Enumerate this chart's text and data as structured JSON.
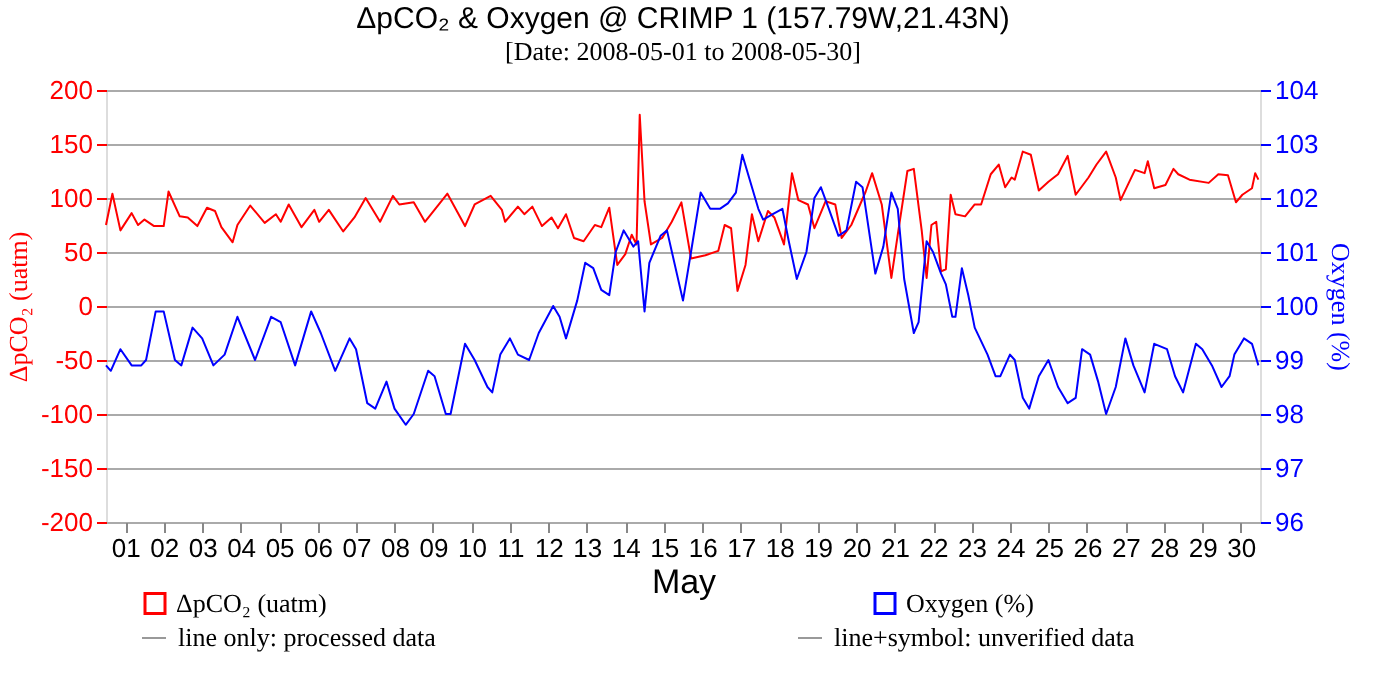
{
  "chart_data": {
    "type": "line",
    "title": "ΔpCO₂ & Oxygen  @ CRIMP 1 (157.79W,21.43N)",
    "subtitle": "[Date: 2008-05-01 to 2008-05-30]",
    "xlabel": "May",
    "ylabel": "ΔpCO₂ (uatm)",
    "y2label": "Oxygen (%)",
    "xlim": [
      "2008-05-01T00:00",
      "2008-05-31T00:00"
    ],
    "xticks": [
      {
        "value": "2008-05-01T12:00",
        "label": "01"
      },
      {
        "value": "2008-05-02T12:00",
        "label": "02"
      },
      {
        "value": "2008-05-03T12:00",
        "label": "03"
      },
      {
        "value": "2008-05-04T12:00",
        "label": "04"
      },
      {
        "value": "2008-05-05T12:00",
        "label": "05"
      },
      {
        "value": "2008-05-06T12:00",
        "label": "06"
      },
      {
        "value": "2008-05-07T12:00",
        "label": "07"
      },
      {
        "value": "2008-05-08T12:00",
        "label": "08"
      },
      {
        "value": "2008-05-09T12:00",
        "label": "09"
      },
      {
        "value": "2008-05-10T12:00",
        "label": "10"
      },
      {
        "value": "2008-05-11T12:00",
        "label": "11"
      },
      {
        "value": "2008-05-12T12:00",
        "label": "12"
      },
      {
        "value": "2008-05-13T12:00",
        "label": "13"
      },
      {
        "value": "2008-05-14T12:00",
        "label": "14"
      },
      {
        "value": "2008-05-15T12:00",
        "label": "15"
      },
      {
        "value": "2008-05-16T12:00",
        "label": "16"
      },
      {
        "value": "2008-05-17T12:00",
        "label": "17"
      },
      {
        "value": "2008-05-18T12:00",
        "label": "18"
      },
      {
        "value": "2008-05-19T12:00",
        "label": "19"
      },
      {
        "value": "2008-05-20T12:00",
        "label": "20"
      },
      {
        "value": "2008-05-21T12:00",
        "label": "21"
      },
      {
        "value": "2008-05-22T12:00",
        "label": "22"
      },
      {
        "value": "2008-05-23T12:00",
        "label": "23"
      },
      {
        "value": "2008-05-24T12:00",
        "label": "24"
      },
      {
        "value": "2008-05-25T12:00",
        "label": "25"
      },
      {
        "value": "2008-05-26T12:00",
        "label": "26"
      },
      {
        "value": "2008-05-27T12:00",
        "label": "27"
      },
      {
        "value": "2008-05-28T12:00",
        "label": "28"
      },
      {
        "value": "2008-05-29T12:00",
        "label": "29"
      },
      {
        "value": "2008-05-30T12:00",
        "label": "30"
      }
    ],
    "ylim": [
      -200,
      200
    ],
    "yticks": [
      -200,
      -150,
      -100,
      -50,
      0,
      50,
      100,
      150,
      200
    ],
    "y2lim": [
      96,
      104
    ],
    "y2ticks": [
      96,
      97,
      98,
      99,
      100,
      101,
      102,
      103,
      104
    ],
    "grid": "y",
    "legend": "bottom",
    "marker": "none",
    "annotations": [
      "line only: processed data",
      "line+symbol: unverified data"
    ],
    "series": [
      {
        "name": "ΔpCO₂ (uatm)",
        "color": "#ff0000",
        "x": [
          "2008-05-01T00:00",
          "2008-05-01T04:00",
          "2008-05-01T09:00",
          "2008-05-01T16:00",
          "2008-05-01T20:00",
          "2008-05-02T00:00",
          "2008-05-02T06:00",
          "2008-05-02T12:00",
          "2008-05-02T15:00",
          "2008-05-02T22:00",
          "2008-05-03T03:00",
          "2008-05-03T09:00",
          "2008-05-03T15:00",
          "2008-05-03T20:00",
          "2008-05-04T00:00",
          "2008-05-04T07:00",
          "2008-05-04T10:00",
          "2008-05-04T18:00",
          "2008-05-05T03:00",
          "2008-05-05T10:00",
          "2008-05-05T13:00",
          "2008-05-05T18:00",
          "2008-05-06T02:00",
          "2008-05-06T10:00",
          "2008-05-06T13:00",
          "2008-05-06T19:00",
          "2008-05-07T04:00",
          "2008-05-07T11:00",
          "2008-05-07T18:00",
          "2008-05-08T03:00",
          "2008-05-08T11:00",
          "2008-05-08T15:00",
          "2008-05-09T00:00",
          "2008-05-09T07:00",
          "2008-05-09T21:00",
          "2008-05-10T08:00",
          "2008-05-10T14:00",
          "2008-05-11T00:00",
          "2008-05-11T07:00",
          "2008-05-11T09:00",
          "2008-05-11T17:00",
          "2008-05-11T21:00",
          "2008-05-12T02:00",
          "2008-05-12T08:00",
          "2008-05-12T14:00",
          "2008-05-12T18:00",
          "2008-05-12T23:00",
          "2008-05-13T04:00",
          "2008-05-13T10:00",
          "2008-05-13T17:00",
          "2008-05-13T21:00",
          "2008-05-14T02:00",
          "2008-05-14T07:00",
          "2008-05-14T12:00",
          "2008-05-14T16:00",
          "2008-05-14T19:00",
          "2008-05-14T21:00",
          "2008-05-15T00:00",
          "2008-05-15T04:00",
          "2008-05-15T11:00",
          "2008-05-15T17:00",
          "2008-05-15T23:00",
          "2008-05-16T05:00",
          "2008-05-16T14:00",
          "2008-05-16T22:00",
          "2008-05-17T02:00",
          "2008-05-17T06:00",
          "2008-05-17T10:00",
          "2008-05-17T15:00",
          "2008-05-17T19:00",
          "2008-05-17T23:00",
          "2008-05-18T05:00",
          "2008-05-18T09:00",
          "2008-05-18T15:00",
          "2008-05-18T20:00",
          "2008-05-19T00:00",
          "2008-05-19T06:00",
          "2008-05-19T10:00",
          "2008-05-19T17:00",
          "2008-05-19T23:00",
          "2008-05-20T03:00",
          "2008-05-20T09:00",
          "2008-05-20T18:00",
          "2008-05-20T22:00",
          "2008-05-21T04:00",
          "2008-05-21T10:00",
          "2008-05-21T14:00",
          "2008-05-21T20:00",
          "2008-05-22T00:00",
          "2008-05-22T05:00",
          "2008-05-22T08:00",
          "2008-05-22T11:00",
          "2008-05-22T14:00",
          "2008-05-22T17:00",
          "2008-05-22T20:00",
          "2008-05-22T23:00",
          "2008-05-23T02:00",
          "2008-05-23T08:00",
          "2008-05-23T14:00",
          "2008-05-23T18:00",
          "2008-05-24T00:00",
          "2008-05-24T05:00",
          "2008-05-24T09:00",
          "2008-05-24T13:00",
          "2008-05-24T15:00",
          "2008-05-24T20:00",
          "2008-05-25T01:00",
          "2008-05-25T06:00",
          "2008-05-25T12:00",
          "2008-05-25T18:00",
          "2008-05-26T00:00",
          "2008-05-26T05:00",
          "2008-05-26T13:00",
          "2008-05-26T18:00",
          "2008-05-27T00:00",
          "2008-05-27T06:00",
          "2008-05-27T09:00",
          "2008-05-27T18:00",
          "2008-05-28T00:00",
          "2008-05-28T02:00",
          "2008-05-28T06:00",
          "2008-05-28T13:00",
          "2008-05-28T18:00",
          "2008-05-28T21:00",
          "2008-05-29T04:00",
          "2008-05-29T16:00",
          "2008-05-29T22:00",
          "2008-05-30T04:00",
          "2008-05-30T09:00",
          "2008-05-30T13:00",
          "2008-05-30T19:00",
          "2008-05-30T21:00",
          "2008-05-30T23:00"
        ],
        "values": [
          75,
          104,
          70,
          86,
          75,
          80,
          74,
          74,
          106,
          83,
          82,
          74,
          91,
          88,
          73,
          59,
          75,
          93,
          77,
          85,
          78,
          94,
          73,
          89,
          78,
          89,
          69,
          82,
          100,
          78,
          102,
          94,
          96,
          78,
          104,
          74,
          94,
          102,
          89,
          78,
          92,
          85,
          92,
          74,
          82,
          72,
          85,
          63,
          60,
          75,
          73,
          91,
          38,
          48,
          66,
          57,
          177,
          97,
          57,
          63,
          78,
          96,
          44,
          47,
          51,
          75,
          72,
          14,
          38,
          85,
          60,
          88,
          82,
          57,
          123,
          98,
          94,
          72,
          97,
          94,
          63,
          75,
          106,
          123,
          94,
          26,
          66,
          125,
          127,
          69,
          26,
          75,
          78,
          32,
          34,
          103,
          85,
          83,
          94,
          94,
          122,
          131,
          110,
          119,
          117,
          143,
          140,
          107,
          115,
          122,
          139,
          103,
          119,
          131,
          143,
          119,
          98,
          126,
          123,
          134,
          109,
          112,
          127,
          122,
          117,
          114,
          122,
          121,
          96,
          103,
          109,
          123,
          117
        ]
      },
      {
        "name": "Oxygen (%)",
        "color": "#0000ff",
        "axis": "y2",
        "x": [
          "2008-05-01T00:00",
          "2008-05-01T03:00",
          "2008-05-01T09:00",
          "2008-05-01T16:00",
          "2008-05-01T22:00",
          "2008-05-02T01:00",
          "2008-05-02T07:00",
          "2008-05-02T12:00",
          "2008-05-02T19:00",
          "2008-05-02T23:00",
          "2008-05-03T06:00",
          "2008-05-03T12:00",
          "2008-05-03T19:00",
          "2008-05-04T02:00",
          "2008-05-04T10:00",
          "2008-05-04T21:00",
          "2008-05-05T07:00",
          "2008-05-05T13:00",
          "2008-05-05T22:00",
          "2008-05-06T08:00",
          "2008-05-06T14:00",
          "2008-05-06T23:00",
          "2008-05-07T08:00",
          "2008-05-07T12:00",
          "2008-05-07T19:00",
          "2008-05-08T00:00",
          "2008-05-08T07:00",
          "2008-05-08T12:00",
          "2008-05-08T19:00",
          "2008-05-09T00:00",
          "2008-05-09T09:00",
          "2008-05-09T13:00",
          "2008-05-09T20:00",
          "2008-05-09T23:00",
          "2008-05-10T08:00",
          "2008-05-10T14:00",
          "2008-05-10T22:00",
          "2008-05-11T01:00",
          "2008-05-11T06:00",
          "2008-05-11T12:00",
          "2008-05-11T17:00",
          "2008-05-12T00:00",
          "2008-05-12T06:00",
          "2008-05-12T15:00",
          "2008-05-12T19:00",
          "2008-05-12T23:00",
          "2008-05-13T06:00",
          "2008-05-13T11:00",
          "2008-05-13T16:00",
          "2008-05-13T21:00",
          "2008-05-14T02:00",
          "2008-05-14T06:00",
          "2008-05-14T11:00",
          "2008-05-14T17:00",
          "2008-05-14T20:00",
          "2008-05-15T00:00",
          "2008-05-15T03:00",
          "2008-05-15T10:00",
          "2008-05-15T14:00",
          "2008-05-16T00:00",
          "2008-05-16T05:00",
          "2008-05-16T11:00",
          "2008-05-16T17:00",
          "2008-05-16T23:00",
          "2008-05-17T04:00",
          "2008-05-17T09:00",
          "2008-05-17T13:00",
          "2008-05-17T18:00",
          "2008-05-17T23:00",
          "2008-05-18T02:00",
          "2008-05-18T08:00",
          "2008-05-18T14:00",
          "2008-05-18T18:00",
          "2008-05-18T23:00",
          "2008-05-19T05:00",
          "2008-05-19T10:00",
          "2008-05-19T14:00",
          "2008-05-19T19:00",
          "2008-05-20T01:00",
          "2008-05-20T06:00",
          "2008-05-20T12:00",
          "2008-05-20T16:00",
          "2008-05-21T00:00",
          "2008-05-21T05:00",
          "2008-05-21T10:00",
          "2008-05-21T14:00",
          "2008-05-21T18:00",
          "2008-05-22T00:00",
          "2008-05-22T03:00",
          "2008-05-22T08:00",
          "2008-05-22T12:00",
          "2008-05-22T17:00",
          "2008-05-22T20:00",
          "2008-05-23T00:00",
          "2008-05-23T02:00",
          "2008-05-23T06:00",
          "2008-05-23T10:00",
          "2008-05-23T14:00",
          "2008-05-23T22:00",
          "2008-05-24T03:00",
          "2008-05-24T06:00",
          "2008-05-24T12:00",
          "2008-05-24T15:00",
          "2008-05-24T20:00",
          "2008-05-25T00:00",
          "2008-05-25T06:00",
          "2008-05-25T12:00",
          "2008-05-25T18:00",
          "2008-05-26T00:00",
          "2008-05-26T05:00",
          "2008-05-26T09:00",
          "2008-05-26T14:00",
          "2008-05-26T19:00",
          "2008-05-27T00:00",
          "2008-05-27T06:00",
          "2008-05-27T12:00",
          "2008-05-27T17:00",
          "2008-05-28T00:00",
          "2008-05-28T06:00",
          "2008-05-28T14:00",
          "2008-05-28T19:00",
          "2008-05-29T00:00",
          "2008-05-29T08:00",
          "2008-05-29T12:00",
          "2008-05-29T18:00",
          "2008-05-30T00:00",
          "2008-05-30T05:00",
          "2008-05-30T08:00",
          "2008-05-30T14:00",
          "2008-05-30T19:00",
          "2008-05-30T23:00"
        ],
        "values": [
          98.9,
          98.8,
          99.2,
          98.9,
          98.9,
          99.0,
          99.9,
          99.9,
          99.0,
          98.9,
          99.6,
          99.4,
          98.9,
          99.1,
          99.8,
          99.0,
          99.8,
          99.7,
          98.9,
          99.9,
          99.5,
          98.8,
          99.4,
          99.2,
          98.2,
          98.1,
          98.6,
          98.1,
          97.8,
          98.0,
          98.8,
          98.7,
          98.0,
          98.0,
          99.3,
          99.0,
          98.5,
          98.4,
          99.1,
          99.4,
          99.1,
          99.0,
          99.5,
          100.0,
          99.8,
          99.4,
          100.1,
          100.8,
          100.7,
          100.3,
          100.2,
          101.0,
          101.4,
          101.1,
          101.2,
          99.9,
          100.8,
          101.3,
          101.4,
          100.1,
          101.0,
          102.1,
          101.8,
          101.8,
          101.9,
          102.1,
          102.8,
          102.3,
          101.8,
          101.6,
          101.7,
          101.8,
          101.2,
          100.5,
          101.0,
          102.0,
          102.2,
          101.8,
          101.3,
          101.4,
          102.3,
          102.2,
          100.6,
          101.1,
          102.1,
          101.8,
          100.5,
          99.5,
          99.7,
          101.2,
          101.0,
          100.6,
          100.4,
          99.8,
          99.8,
          100.7,
          100.2,
          99.6,
          99.1,
          98.7,
          98.7,
          99.1,
          99.0,
          98.3,
          98.1,
          98.7,
          99.0,
          98.5,
          98.2,
          98.3,
          99.2,
          99.1,
          98.6,
          98.0,
          98.5,
          99.4,
          98.9,
          98.4,
          99.3,
          99.2,
          98.7,
          98.4,
          99.3,
          99.2,
          98.9,
          98.5,
          98.7,
          99.1,
          99.4,
          99.3,
          98.9
        ]
      }
    ]
  }
}
